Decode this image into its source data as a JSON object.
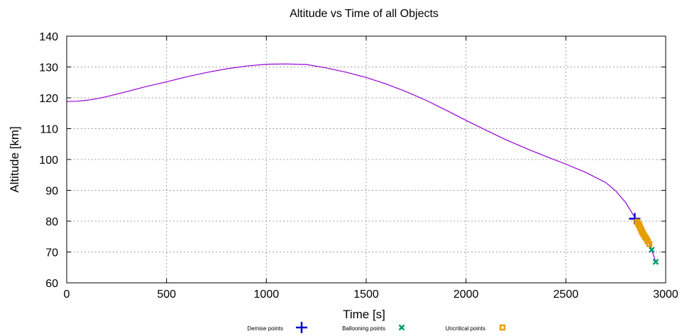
{
  "chart_data": {
    "type": "line",
    "title": "Altitude vs Time of all Objects",
    "xlabel": "Time [s]",
    "ylabel": "Altitude [km]",
    "xlim": [
      0,
      3000
    ],
    "ylim": [
      60,
      140
    ],
    "xticks": [
      0,
      500,
      1000,
      1500,
      2000,
      2500,
      3000
    ],
    "yticks": [
      60,
      70,
      80,
      90,
      100,
      110,
      120,
      130,
      140
    ],
    "grid": true,
    "legend": "bottom",
    "trajectory": {
      "color": "#9400d3",
      "points": [
        [
          0,
          118.8
        ],
        [
          50,
          118.9
        ],
        [
          100,
          119.2
        ],
        [
          150,
          119.7
        ],
        [
          200,
          120.4
        ],
        [
          300,
          122.0
        ],
        [
          400,
          123.7
        ],
        [
          500,
          125.2
        ],
        [
          600,
          126.8
        ],
        [
          700,
          128.2
        ],
        [
          800,
          129.4
        ],
        [
          900,
          130.3
        ],
        [
          1000,
          130.9
        ],
        [
          1100,
          131.0
        ],
        [
          1200,
          130.8
        ],
        [
          1300,
          129.7
        ],
        [
          1400,
          128.3
        ],
        [
          1500,
          126.6
        ],
        [
          1600,
          124.5
        ],
        [
          1700,
          122.0
        ],
        [
          1800,
          119.2
        ],
        [
          1900,
          116.0
        ],
        [
          2000,
          112.7
        ],
        [
          2100,
          109.5
        ],
        [
          2200,
          106.4
        ],
        [
          2300,
          103.6
        ],
        [
          2400,
          101.0
        ],
        [
          2500,
          98.5
        ],
        [
          2600,
          95.8
        ],
        [
          2700,
          92.5
        ],
        [
          2750,
          89.8
        ],
        [
          2800,
          86.0
        ],
        [
          2830,
          82.8
        ],
        [
          2850,
          80.8
        ],
        [
          2870,
          78.5
        ],
        [
          2890,
          76.5
        ],
        [
          2910,
          74.3
        ],
        [
          2930,
          70.7
        ],
        [
          2950,
          66.8
        ]
      ]
    },
    "series": [
      {
        "name": "Demise points",
        "marker": "plus",
        "color": "#0000cd",
        "points": [
          [
            2845,
            80.8
          ]
        ]
      },
      {
        "name": "Ballooning points",
        "marker": "cross",
        "color": "#009b6e",
        "points": [
          [
            2930,
            70.7
          ],
          [
            2950,
            66.8
          ]
        ]
      },
      {
        "name": "Uncritical points",
        "marker": "square",
        "color": "#e69f00",
        "points": [
          [
            2858,
            79.8
          ],
          [
            2862,
            79.3
          ],
          [
            2866,
            78.8
          ],
          [
            2870,
            78.3
          ],
          [
            2874,
            77.7
          ],
          [
            2878,
            77.1
          ],
          [
            2882,
            76.5
          ],
          [
            2886,
            76.0
          ],
          [
            2892,
            75.4
          ],
          [
            2898,
            74.8
          ],
          [
            2904,
            74.2
          ],
          [
            2910,
            73.5
          ],
          [
            2918,
            72.6
          ]
        ]
      }
    ]
  }
}
